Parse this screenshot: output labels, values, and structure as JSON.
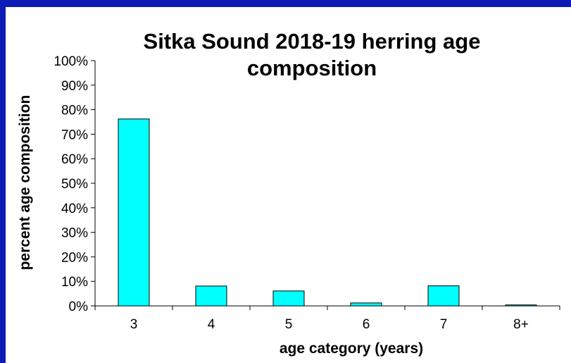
{
  "colors": {
    "frame": "#0d1bb7",
    "panel": "#ffffff",
    "bar_fill": "#00ffff",
    "bar_stroke": "#000000"
  },
  "chart_data": {
    "type": "bar",
    "title_line1": "Sitka Sound 2018-19 herring age",
    "title_line2": "composition",
    "xlabel": "age category (years)",
    "ylabel": "percent age composition",
    "categories": [
      "3",
      "4",
      "5",
      "6",
      "7",
      "8+"
    ],
    "values": [
      76.2,
      8.1,
      6.1,
      1.2,
      8.2,
      0.4
    ],
    "ylim": [
      0,
      100
    ],
    "y_ticks": [
      0,
      10,
      20,
      30,
      40,
      50,
      60,
      70,
      80,
      90,
      100
    ],
    "y_tick_labels": [
      "0%",
      "10%",
      "20%",
      "30%",
      "40%",
      "50%",
      "60%",
      "70%",
      "80%",
      "90%",
      "100%"
    ],
    "grid": false,
    "legend": "none"
  }
}
